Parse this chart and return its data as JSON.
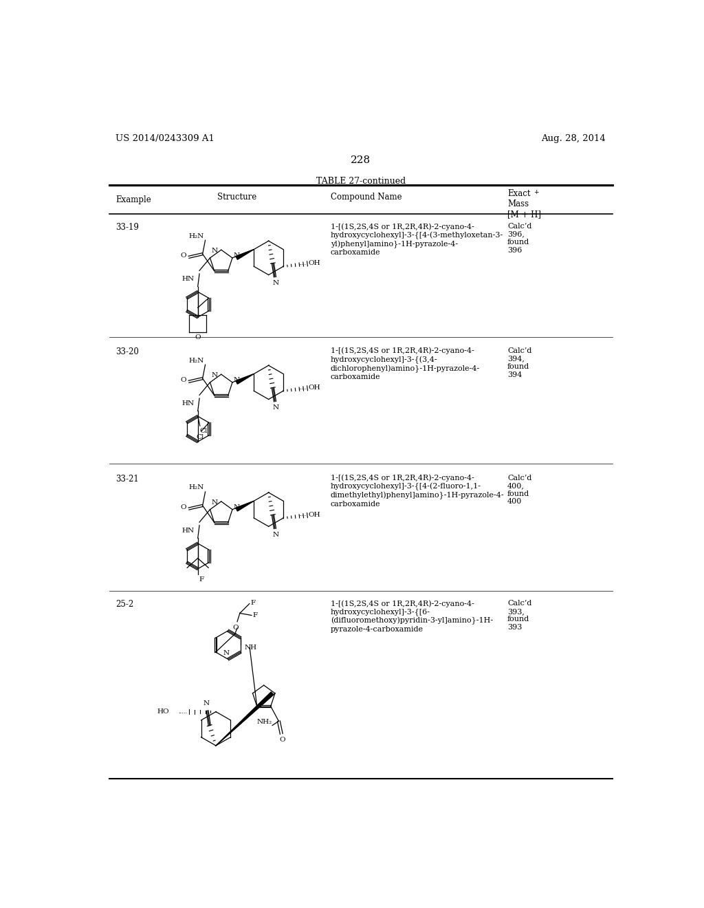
{
  "page_number": "228",
  "patent_number": "US 2014/0243309 A1",
  "patent_date": "Aug. 28, 2014",
  "table_title": "TABLE 27-continued",
  "rows": [
    {
      "example": "33-19",
      "compound_name": "1-[(1S,2S,4S or 1R,2R,4R)-2-cyano-4-\nhydroxycyclohexyl]-3-{[4-(3-methyloxetan-3-\nyl)phenyl]amino}-1H-pyrazole-4-\ncarboxamide",
      "exact_mass": "Calc’d\n396,\nfound\n396"
    },
    {
      "example": "33-20",
      "compound_name": "1-[(1S,2S,4S or 1R,2R,4R)-2-cyano-4-\nhydroxycyclohexyl]-3-{(3,4-\ndichlorophenyl)amino}-1H-pyrazole-4-\ncarboxamide",
      "exact_mass": "Calc’d\n394,\nfound\n394"
    },
    {
      "example": "33-21",
      "compound_name": "1-[(1S,2S,4S or 1R,2R,4R)-2-cyano-4-\nhydroxycyclohexyl]-3-{[4-(2-fluoro-1,1-\ndimethylethyl)phenyl]amino}-1H-pyrazole-4-\ncarboxamide",
      "exact_mass": "Calc’d\n400,\nfound\n400"
    },
    {
      "example": "25-2",
      "compound_name": "1-[(1S,2S,4S or 1R,2R,4R)-2-cyano-4-\nhydroxycyclohexyl]-3-{[6-\n(difluoromethoxy)pyridin-3-yl]amino}-1H-\npyrazole-4-carboxamide",
      "exact_mass": "Calc’d\n393,\nfound\n393"
    }
  ],
  "bg_color": "#ffffff"
}
